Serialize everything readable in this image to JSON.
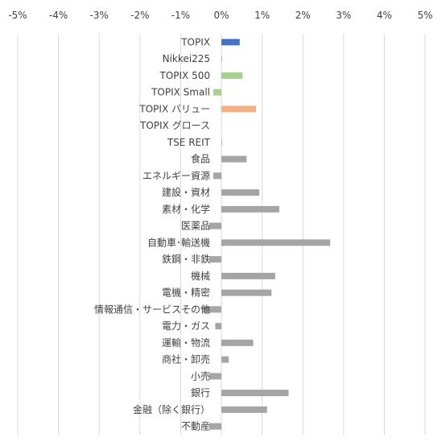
{
  "chart_data": {
    "type": "bar",
    "orientation": "horizontal",
    "xlim": [
      -5,
      5
    ],
    "x_ticks": [
      "-5%",
      "-4%",
      "-3%",
      "-2%",
      "-1%",
      "0%",
      "1%",
      "2%",
      "3%",
      "4%",
      "5%"
    ],
    "grid": true,
    "legend": "none",
    "categories": [
      "TOPIX",
      "Nikkei225",
      "TOPIX 500",
      "TOPIX Small",
      "TOPIX バリュー",
      "TOPIX グロース",
      "TSE REIT",
      "食品",
      "エネルギー資源",
      "建設・資材",
      "素材・化学",
      "医薬品",
      "自動車･輸送機",
      "鉄鋼・非鉄",
      "機械",
      "電機・精密",
      "情報通信・サービスその他",
      "電力・ガス",
      "運輸・物流",
      "商社・卸売",
      "小売",
      "銀行",
      "金融（除く銀行）",
      "不動産"
    ],
    "values": [
      0.45,
      0.02,
      0.52,
      -0.2,
      0.85,
      0.0,
      0.02,
      0.62,
      -0.2,
      0.93,
      1.42,
      -0.3,
      2.67,
      -0.3,
      1.32,
      1.23,
      -0.45,
      -0.15,
      0.78,
      0.18,
      -0.3,
      1.65,
      1.12,
      -0.3
    ],
    "colors": [
      "#4472C4",
      "#FFC000",
      "#A9D18E",
      "#A9D18E",
      "#F4B183",
      "#F4B183",
      "#F4B183",
      "#A5A5A5",
      "#A5A5A5",
      "#A5A5A5",
      "#A5A5A5",
      "#A5A5A5",
      "#A5A5A5",
      "#A5A5A5",
      "#A5A5A5",
      "#A5A5A5",
      "#A5A5A5",
      "#A5A5A5",
      "#A5A5A5",
      "#A5A5A5",
      "#A5A5A5",
      "#A5A5A5",
      "#A5A5A5",
      "#A5A5A5"
    ],
    "grid_color": "#D9D9D9"
  }
}
